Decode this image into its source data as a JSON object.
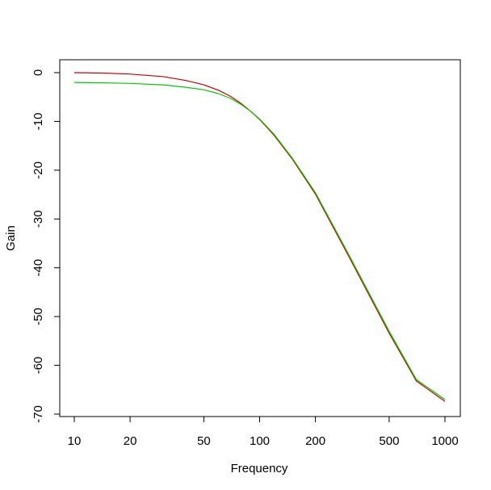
{
  "chart_data": {
    "type": "line",
    "title": "",
    "xlabel": "Frequency",
    "ylabel": "Gain",
    "x_scale": "log",
    "xlim": [
      10,
      1000
    ],
    "ylim": [
      -70,
      0
    ],
    "x_ticks": [
      10,
      20,
      50,
      100,
      200,
      500,
      1000
    ],
    "x_tick_labels": [
      "10",
      "20",
      "50",
      "100",
      "200",
      "500",
      "1000"
    ],
    "y_ticks": [
      0,
      -10,
      -20,
      -30,
      -40,
      -50,
      -60,
      -70
    ],
    "y_tick_labels": [
      "0",
      "-10",
      "-20",
      "-30",
      "-40",
      "-50",
      "-60",
      "-70"
    ],
    "grid": false,
    "series": [
      {
        "color": "#cc0000",
        "x": [
          10,
          15,
          20,
          30,
          40,
          50,
          60,
          70,
          80,
          90,
          100,
          120,
          150,
          200,
          300,
          500,
          700,
          1000
        ],
        "values": [
          0,
          -0.1,
          -0.3,
          -0.8,
          -1.6,
          -2.5,
          -3.6,
          -4.9,
          -6.4,
          -8.0,
          -9.6,
          -12.9,
          -17.7,
          -24.9,
          -37.4,
          -53.4,
          -63.2,
          -67.4
        ]
      },
      {
        "color": "#00cc00",
        "x": [
          10,
          15,
          20,
          30,
          40,
          50,
          60,
          70,
          80,
          90,
          100,
          120,
          150,
          200,
          300,
          500,
          700,
          1000
        ],
        "values": [
          -2.0,
          -2.1,
          -2.2,
          -2.5,
          -3.0,
          -3.5,
          -4.3,
          -5.3,
          -6.6,
          -8.0,
          -9.5,
          -12.7,
          -17.5,
          -24.6,
          -37.0,
          -53.0,
          -62.9,
          -67.0
        ]
      }
    ]
  }
}
